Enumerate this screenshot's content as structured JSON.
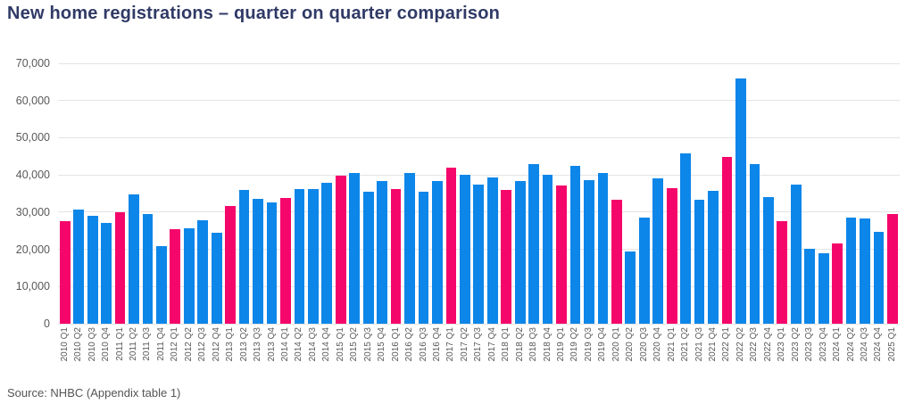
{
  "title": "New home registrations – quarter on quarter comparison",
  "source": "Source: NHBC (Appendix table 1)",
  "colors": {
    "bar_default": "#0d86e9",
    "bar_q1_highlight": "#f5066b",
    "title_text": "#303a66",
    "axis_text": "#595959",
    "gridline": "#e4e4e4"
  },
  "chart_data": {
    "type": "bar",
    "title": "New home registrations – quarter on quarter comparison",
    "xlabel": "",
    "ylabel": "",
    "ylim": [
      0,
      70000
    ],
    "grid": true,
    "legend": false,
    "highlight_rule": "Q1 bars are pink, other quarters blue",
    "yticks": [
      0,
      10000,
      20000,
      30000,
      40000,
      50000,
      60000,
      70000
    ],
    "ytick_labels": [
      "0",
      "10,000",
      "20,000",
      "30,000",
      "40,000",
      "50,000",
      "60,000",
      "70,000"
    ],
    "categories": [
      "2010 Q1",
      "2010 Q2",
      "2010 Q3",
      "2010 Q4",
      "2011 Q1",
      "2011 Q2",
      "2011 Q3",
      "2011 Q4",
      "2012 Q1",
      "2012 Q2",
      "2012 Q3",
      "2012 Q4",
      "2013 Q1",
      "2013 Q2",
      "2013 Q3",
      "2013 Q4",
      "2014 Q1",
      "2014 Q2",
      "2014 Q3",
      "2014 Q4",
      "2015 Q1",
      "2015 Q2",
      "2015 Q3",
      "2015 Q4",
      "2016 Q1",
      "2016 Q2",
      "2016 Q3",
      "2016 Q4",
      "2017 Q1",
      "2017 Q2",
      "2017 Q3",
      "2017 Q4",
      "2018 Q1",
      "2018 Q2",
      "2018 Q3",
      "2018 Q4",
      "2019 Q1",
      "2019 Q2",
      "2019 Q3",
      "2019 Q4",
      "2020 Q1",
      "2020 Q2",
      "2020 Q3",
      "2020 Q4",
      "2021 Q1",
      "2021 Q2",
      "2021 Q3",
      "2021 Q4",
      "2022 Q1",
      "2022 Q2",
      "2022 Q3",
      "2022 Q4",
      "2023 Q1",
      "2023 Q2",
      "2023 Q3",
      "2023 Q4",
      "2024 Q1",
      "2024 Q2",
      "2024 Q3",
      "2024 Q4",
      "2025 Q1"
    ],
    "values": [
      27500,
      30600,
      29100,
      27000,
      29900,
      34700,
      29500,
      20800,
      25300,
      25600,
      27900,
      24400,
      31700,
      35900,
      33600,
      32500,
      33900,
      36300,
      36200,
      37900,
      39700,
      40600,
      35500,
      38300,
      36300,
      40500,
      35400,
      38400,
      42000,
      40000,
      37500,
      39200,
      36000,
      38300,
      43000,
      40100,
      37200,
      42500,
      38500,
      40600,
      33300,
      19500,
      28600,
      39100,
      36400,
      45900,
      33400,
      35700,
      44900,
      66000,
      43000,
      34100,
      27500,
      37300,
      20200,
      19000,
      21500,
      28600,
      28300,
      24800,
      29400
    ]
  }
}
